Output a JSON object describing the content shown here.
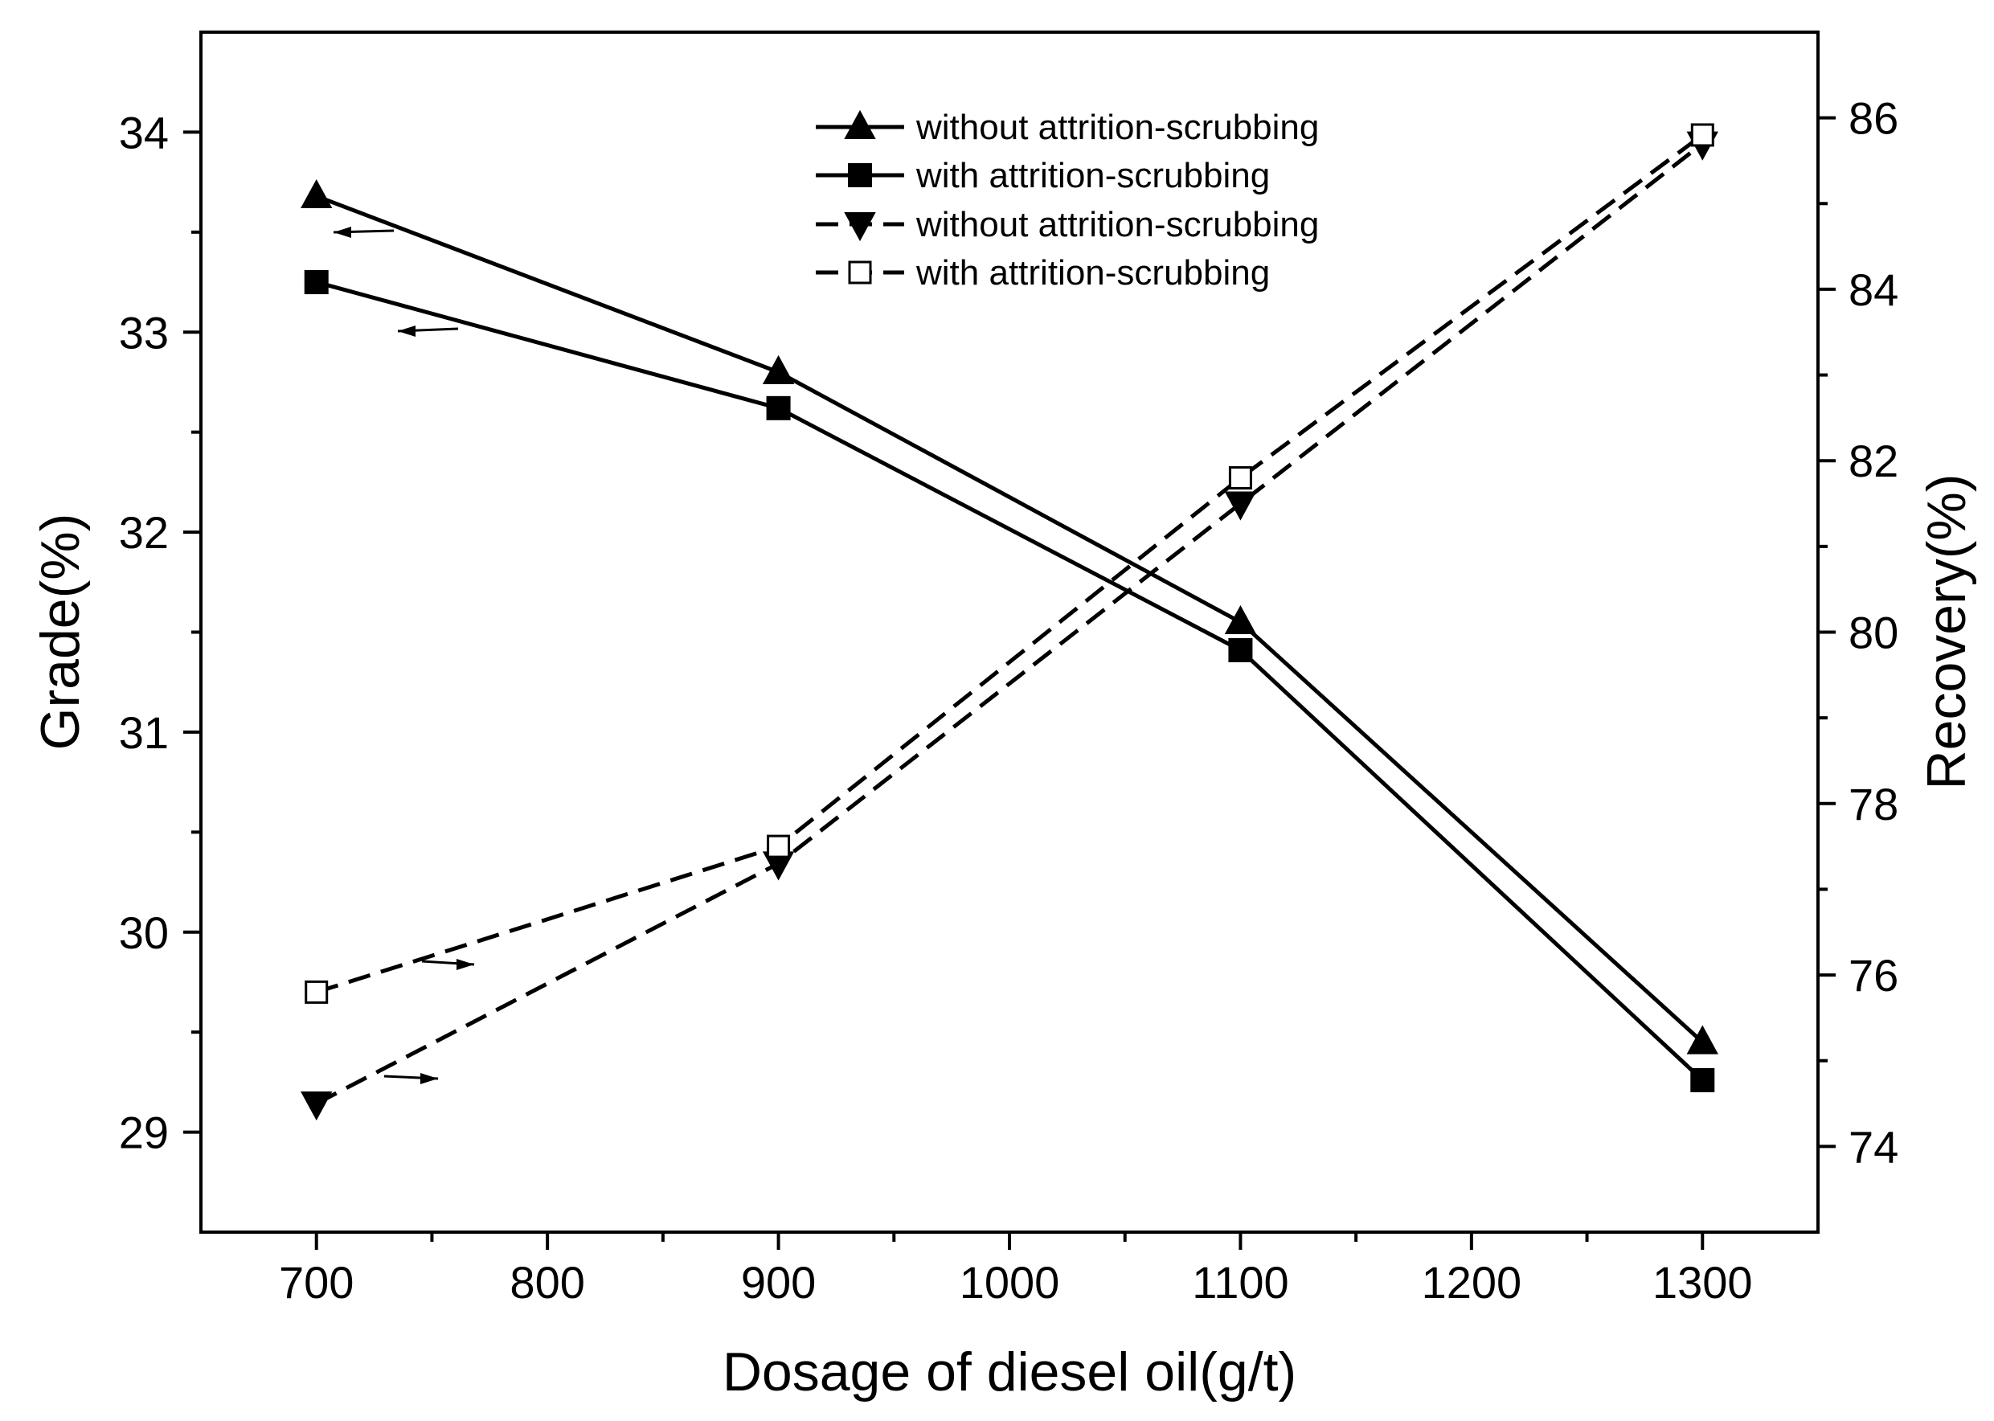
{
  "chart_data": {
    "type": "line",
    "title": "",
    "xlabel": "Dosage of diesel oil(g/t)",
    "ylabel_left": "Grade(%)",
    "ylabel_right": "Recovery(%)",
    "x": [
      700,
      900,
      1100,
      1300
    ],
    "xlim": [
      650,
      1350
    ],
    "ylim_left": [
      28.5,
      34.5
    ],
    "ylim_right": [
      73,
      87
    ],
    "x_ticks": [
      700,
      800,
      900,
      1000,
      1100,
      1200,
      1300
    ],
    "x_minor_ticks": [
      750,
      850,
      950,
      1050,
      1150,
      1250
    ],
    "y_left_ticks": [
      29,
      30,
      31,
      32,
      33,
      34
    ],
    "y_left_minor_ticks": [
      29.5,
      30.5,
      31.5,
      32.5,
      33.5
    ],
    "y_right_ticks": [
      74,
      76,
      78,
      80,
      82,
      84,
      86
    ],
    "y_right_minor_ticks": [
      75,
      77,
      79,
      81,
      83,
      85
    ],
    "grid": false,
    "legend_position": "top-center",
    "series": [
      {
        "name": "without attrition-scrubbing",
        "axis": "left",
        "line": "solid",
        "marker": "triangle-up",
        "values": [
          33.68,
          32.8,
          31.55,
          29.45
        ]
      },
      {
        "name": "with attrition-scrubbing",
        "axis": "left",
        "line": "solid",
        "marker": "square-filled",
        "values": [
          33.25,
          32.62,
          31.41,
          29.26
        ]
      },
      {
        "name": "without attrition-scrubbing",
        "axis": "right",
        "line": "dashed",
        "marker": "triangle-down",
        "values": [
          74.5,
          77.3,
          81.5,
          85.7
        ]
      },
      {
        "name": "with attrition-scrubbing",
        "axis": "right",
        "line": "dashed",
        "marker": "square-open",
        "values": [
          75.8,
          77.5,
          81.8,
          85.8
        ]
      }
    ],
    "annotations": [
      {
        "type": "arrow",
        "points_to": "left-axis",
        "near_series": 0,
        "label": ""
      },
      {
        "type": "arrow",
        "points_to": "left-axis",
        "near_series": 1,
        "label": ""
      },
      {
        "type": "arrow",
        "points_to": "right-axis",
        "near_series": 3,
        "label": ""
      },
      {
        "type": "arrow",
        "points_to": "right-axis",
        "near_series": 2,
        "label": ""
      }
    ]
  }
}
